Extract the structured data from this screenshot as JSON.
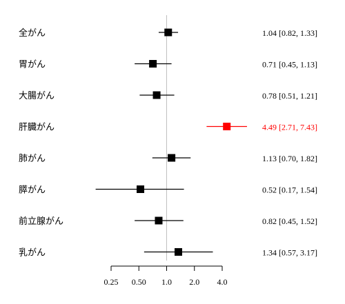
{
  "chart_data": {
    "type": "forest",
    "x_scale": "log2",
    "reference_line": 1.0,
    "xlim": [
      0.25,
      4.0
    ],
    "x_ticks": [
      "0.25",
      "0.50",
      "1.0",
      "2.0",
      "4.0"
    ],
    "x_tick_values": [
      0.25,
      0.5,
      1.0,
      2.0,
      4.0
    ],
    "colors": {
      "default": "#000000",
      "highlight": "#ff0000",
      "reference": "#bfbfbf"
    },
    "rows": [
      {
        "label": "全がん",
        "est": 1.04,
        "lo": 0.82,
        "hi": 1.33,
        "text": "1.04 [0.82, 1.33]",
        "highlight": false
      },
      {
        "label": "胃がん",
        "est": 0.71,
        "lo": 0.45,
        "hi": 1.13,
        "text": "0.71 [0.45, 1.13]",
        "highlight": false
      },
      {
        "label": "大腸がん",
        "est": 0.78,
        "lo": 0.51,
        "hi": 1.21,
        "text": "0.78 [0.51, 1.21]",
        "highlight": false
      },
      {
        "label": "肝臓がん",
        "est": 4.49,
        "lo": 2.71,
        "hi": 7.43,
        "text": "4.49 [2.71, 7.43]",
        "highlight": true
      },
      {
        "label": "肺がん",
        "est": 1.13,
        "lo": 0.7,
        "hi": 1.82,
        "text": "1.13 [0.70, 1.82]",
        "highlight": false
      },
      {
        "label": "膵がん",
        "est": 0.52,
        "lo": 0.17,
        "hi": 1.54,
        "text": "0.52 [0.17, 1.54]",
        "highlight": false
      },
      {
        "label": "前立腺がん",
        "est": 0.82,
        "lo": 0.45,
        "hi": 1.52,
        "text": "0.82 [0.45, 1.52]",
        "highlight": false
      },
      {
        "label": "乳がん",
        "est": 1.34,
        "lo": 0.57,
        "hi": 3.17,
        "text": "1.34 [0.57, 3.17]",
        "highlight": false
      }
    ]
  }
}
